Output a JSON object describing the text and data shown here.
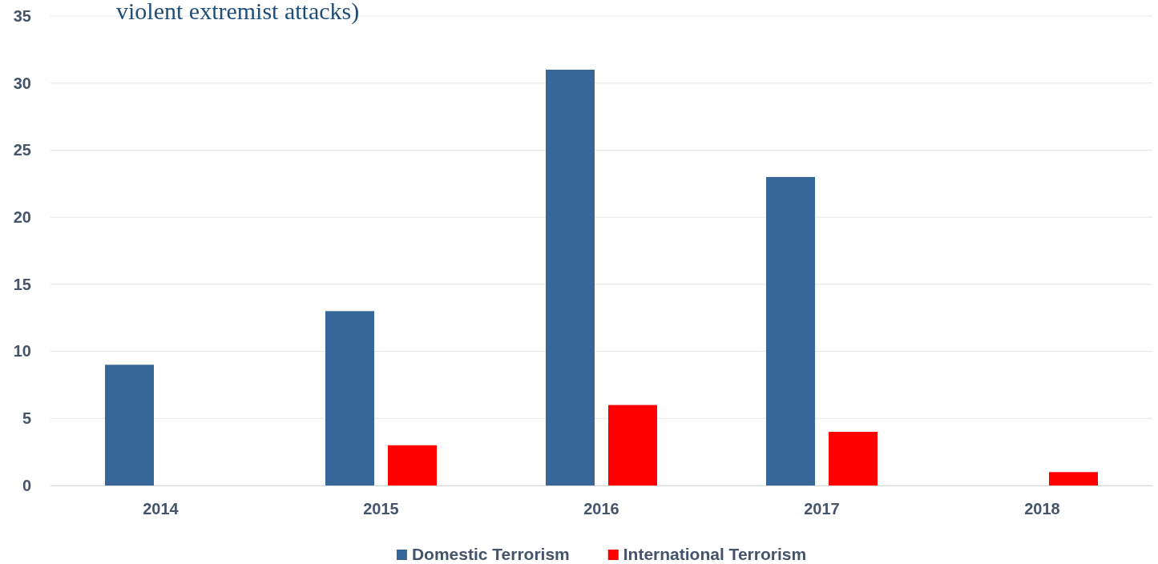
{
  "chart_data": {
    "type": "bar",
    "title": "violent extremist attacks)",
    "categories": [
      "2014",
      "2015",
      "2016",
      "2017",
      "2018"
    ],
    "series": [
      {
        "name": "Domestic Terrorism",
        "color": "#376699",
        "values": [
          9,
          13,
          31,
          23,
          0
        ]
      },
      {
        "name": "International Terrorism",
        "color": "#ff0000",
        "values": [
          0,
          3,
          6,
          4,
          1
        ]
      }
    ],
    "ylim": [
      0,
      35
    ],
    "yticks": [
      0,
      5,
      10,
      15,
      20,
      25,
      30,
      35
    ],
    "grid": "y",
    "legend": "bottom"
  }
}
